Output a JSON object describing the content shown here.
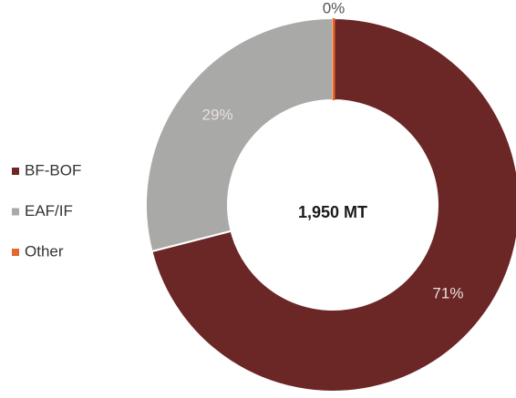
{
  "chart_data": {
    "type": "donut",
    "categories": [
      "BF-BOF",
      "EAF/IF",
      "Other"
    ],
    "values": [
      71,
      29,
      0
    ],
    "value_labels": [
      "71%",
      "29%",
      "0%"
    ],
    "colors": [
      "#6b2626",
      "#a9a9a7",
      "#e2692b"
    ],
    "center_label": "1,950 MT",
    "legend": "left"
  }
}
